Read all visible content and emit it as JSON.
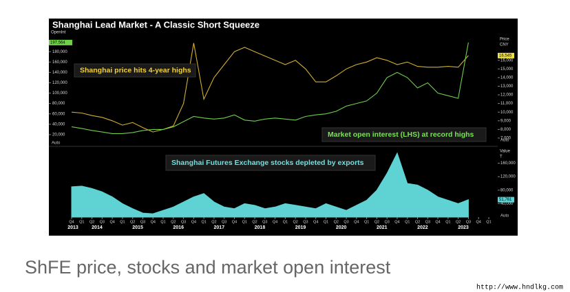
{
  "chart_data": {
    "type": "line",
    "title": "Shanghai Lead Market - A Classic Short Squeeze",
    "categories": [
      "Q4",
      "Q1",
      "Q2",
      "Q3",
      "Q4",
      "Q1",
      "Q2",
      "Q3",
      "Q4",
      "Q1",
      "Q2",
      "Q3",
      "Q4",
      "Q1",
      "Q2",
      "Q3",
      "Q4",
      "Q1",
      "Q2",
      "Q3",
      "Q4",
      "Q1",
      "Q2",
      "Q3",
      "Q4",
      "Q1",
      "Q2",
      "Q3",
      "Q4",
      "Q1",
      "Q2",
      "Q3",
      "Q4",
      "Q1",
      "Q2",
      "Q3",
      "Q4",
      "Q1",
      "Q2",
      "Q3",
      "Q4",
      "Q1"
    ],
    "years": [
      "2013",
      "2014",
      "2015",
      "2016",
      "2017",
      "2018",
      "2019",
      "2020",
      "2021",
      "2022",
      "2023"
    ],
    "y_label": "OpenInt",
    "y2_label": [
      "Price",
      "CNY"
    ],
    "y3_label": [
      "Value",
      "T"
    ],
    "ylim": [
      0,
      220000
    ],
    "yticks": [
      {
        "value": 20000,
        "label": "20,000"
      },
      {
        "value": 40000,
        "label": "40,000"
      },
      {
        "value": 60000,
        "label": "60,000"
      },
      {
        "value": 80000,
        "label": "80,000"
      },
      {
        "value": 100000,
        "label": "100,000"
      },
      {
        "value": 120000,
        "label": "120,000"
      },
      {
        "value": 140000,
        "label": "140,000"
      },
      {
        "value": 160000,
        "label": "160,000"
      },
      {
        "value": 180000,
        "label": "180,000"
      }
    ],
    "y2lim": [
      6200,
      19400
    ],
    "y2ticks": [
      {
        "value": 7000,
        "label": "7,000"
      },
      {
        "value": 8000,
        "label": "8,000"
      },
      {
        "value": 9000,
        "label": "9,000"
      },
      {
        "value": 10000,
        "label": "10,000"
      },
      {
        "value": 11000,
        "label": "11,000"
      },
      {
        "value": 12000,
        "label": "12,000"
      },
      {
        "value": 13000,
        "label": "13,000"
      },
      {
        "value": 14000,
        "label": "14,000"
      },
      {
        "value": 15000,
        "label": "15,000"
      },
      {
        "value": 16000,
        "label": "16,000"
      }
    ],
    "y3lim": [
      0,
      206000
    ],
    "y3ticks": [
      {
        "value": 40000,
        "label": "40,000"
      },
      {
        "value": 80000,
        "label": "80,000"
      },
      {
        "value": 120000,
        "label": "120,000"
      },
      {
        "value": 160000,
        "label": "160,000"
      }
    ],
    "auto_labels": [
      "Auto",
      "Auto",
      "Auto"
    ],
    "series": [
      {
        "axis": "y2",
        "style": "line",
        "color": "#d4b030",
        "values": [
          10000,
          9900,
          9600,
          9400,
          9000,
          8500,
          8800,
          8200,
          7700,
          8000,
          8400,
          11000,
          18000,
          11500,
          14000,
          15500,
          17000,
          17500,
          17000,
          16500,
          16000,
          15500,
          16000,
          15000,
          13500,
          13500,
          14200,
          15000,
          15500,
          15800,
          16300,
          16000,
          15500,
          15800,
          15300,
          15200,
          15200,
          15300,
          15200,
          16545,
          null,
          null
        ],
        "value_labels": [
          null,
          null,
          null,
          null,
          null,
          null,
          null,
          null,
          null,
          null,
          null,
          null,
          null,
          null,
          null,
          null,
          null,
          null,
          null,
          null,
          null,
          null,
          null,
          null,
          null,
          null,
          null,
          null,
          null,
          null,
          null,
          null,
          null,
          null,
          null,
          null,
          null,
          null,
          null,
          "16,545",
          null,
          null
        ]
      },
      {
        "axis": "y",
        "style": "line",
        "color": "#6fd14a",
        "values": [
          35000,
          32000,
          28000,
          25000,
          22000,
          22000,
          24000,
          28000,
          30000,
          30000,
          35000,
          45000,
          55000,
          52000,
          50000,
          52000,
          58000,
          48000,
          46000,
          50000,
          52000,
          50000,
          48000,
          55000,
          58000,
          60000,
          65000,
          75000,
          80000,
          85000,
          100000,
          130000,
          140000,
          130000,
          110000,
          120000,
          100000,
          95000,
          90000,
          197564,
          null,
          null
        ],
        "value_labels": [
          null,
          null,
          null,
          null,
          null,
          null,
          null,
          null,
          null,
          null,
          null,
          null,
          null,
          null,
          null,
          null,
          null,
          null,
          null,
          null,
          null,
          null,
          null,
          null,
          null,
          null,
          null,
          null,
          null,
          null,
          null,
          null,
          null,
          null,
          null,
          null,
          null,
          null,
          null,
          "197,564",
          null,
          null
        ]
      },
      {
        "axis": "y3",
        "style": "area",
        "color": "#5fd3d3",
        "values": [
          90000,
          92000,
          85000,
          75000,
          60000,
          40000,
          25000,
          12000,
          10000,
          20000,
          30000,
          45000,
          60000,
          70000,
          45000,
          30000,
          25000,
          40000,
          35000,
          25000,
          30000,
          40000,
          35000,
          30000,
          25000,
          40000,
          30000,
          20000,
          35000,
          50000,
          80000,
          130000,
          190000,
          100000,
          95000,
          80000,
          60000,
          50000,
          40000,
          51761,
          null,
          null
        ],
        "value_labels": [
          null,
          null,
          null,
          null,
          null,
          null,
          null,
          null,
          null,
          null,
          null,
          null,
          null,
          null,
          null,
          null,
          null,
          null,
          null,
          null,
          null,
          null,
          null,
          null,
          null,
          null,
          null,
          null,
          null,
          null,
          null,
          null,
          null,
          null,
          null,
          null,
          null,
          null,
          null,
          "51,761",
          null,
          null
        ]
      }
    ],
    "annotations": [
      {
        "text": "Shanghai price hits 4-year highs",
        "color": "#f0d040"
      },
      {
        "text": "Market open interest (LHS) at record highs",
        "color": "#7de05a"
      },
      {
        "text": "Shanghai Futures Exchange stocks depleted by exports",
        "color": "#6fe0e0"
      }
    ]
  },
  "caption": "ShFE price, stocks and market open interest",
  "watermark": "http://www.hndlkg.com"
}
